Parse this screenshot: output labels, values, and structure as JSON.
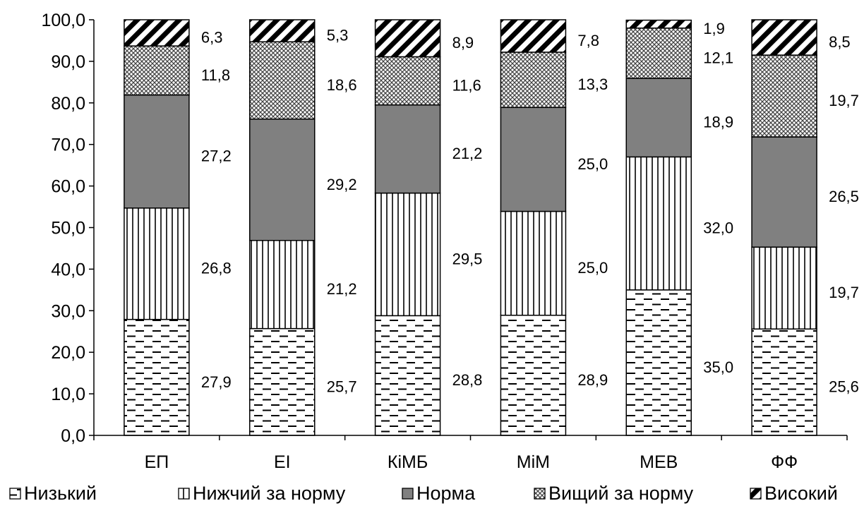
{
  "chart_data": {
    "type": "bar",
    "stacked": true,
    "categories": [
      "ЕП",
      "ЕІ",
      "КіМБ",
      "МіМ",
      "МЕВ",
      "ФФ"
    ],
    "ylim": [
      0,
      100
    ],
    "yticks": [
      "0,0",
      "10,0",
      "20,0",
      "30,0",
      "40,0",
      "50,0",
      "60,0",
      "70,0",
      "80,0",
      "90,0",
      "100,0"
    ],
    "legend_position": "bottom",
    "grid": false,
    "series": [
      {
        "name": "Низький",
        "pattern": "dashes",
        "values": [
          27.9,
          25.7,
          28.8,
          28.9,
          35.0,
          25.6
        ],
        "labels": [
          "27,9",
          "25,7",
          "28,8",
          "28,9",
          "35,0",
          "25,6"
        ]
      },
      {
        "name": "Нижчий за норму",
        "pattern": "vertical-lines",
        "values": [
          26.8,
          21.2,
          29.5,
          25.0,
          32.0,
          19.7
        ],
        "labels": [
          "26,8",
          "21,2",
          "29,5",
          "25,0",
          "32,0",
          "19,7"
        ]
      },
      {
        "name": "Норма",
        "pattern": "solid-gray",
        "color": "#808080",
        "values": [
          27.2,
          29.2,
          21.2,
          25.0,
          18.9,
          26.5
        ],
        "labels": [
          "27,2",
          "29,2",
          "21,2",
          "25,0",
          "18,9",
          "26,5"
        ]
      },
      {
        "name": "Вищий за норму",
        "pattern": "crosshatch",
        "values": [
          11.8,
          18.6,
          11.6,
          13.3,
          12.1,
          19.7
        ],
        "labels": [
          "11,8",
          "18,6",
          "11,6",
          "13,3",
          "12,1",
          "19,7"
        ]
      },
      {
        "name": "Високий",
        "pattern": "diagonal-stripes",
        "values": [
          6.3,
          5.3,
          8.9,
          7.8,
          1.9,
          8.5
        ],
        "labels": [
          "6,3",
          "5,3",
          "8,9",
          "7,8",
          "1,9",
          "8,5"
        ]
      }
    ]
  }
}
